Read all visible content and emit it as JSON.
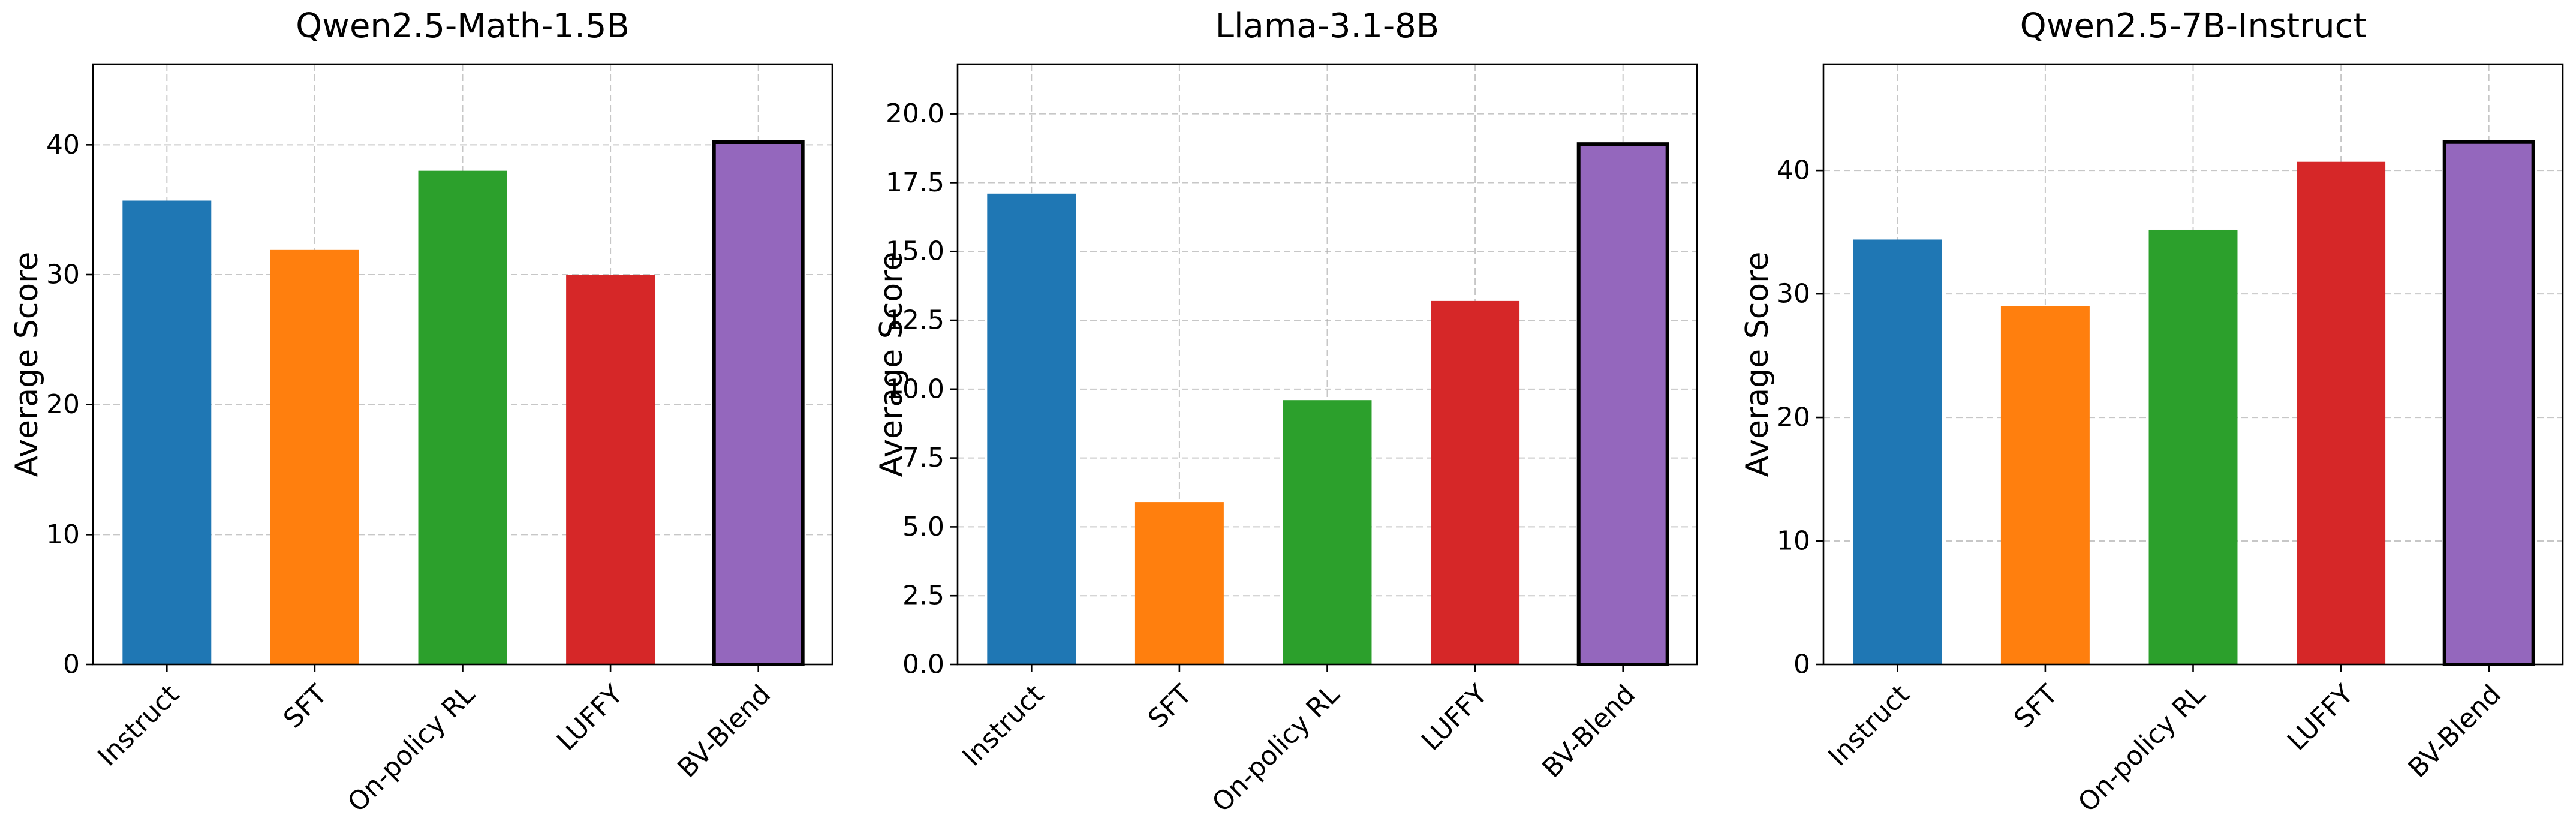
{
  "chart_data": [
    {
      "type": "bar",
      "title": "Qwen2.5-Math-1.5B",
      "xlabel": "",
      "ylabel": "Average Score",
      "categories": [
        "Instruct",
        "SFT",
        "On-policy RL",
        "LUFFY",
        "BV-Blend"
      ],
      "values": [
        35.7,
        31.9,
        38.0,
        30.0,
        40.2
      ],
      "colors": [
        "#1f77b4",
        "#ff7f0e",
        "#2ca02c",
        "#d62728",
        "#9467bd"
      ],
      "highlighted_category": "BV-Blend",
      "ylim": [
        0,
        46.2
      ],
      "yticks": [
        0,
        10,
        20,
        30,
        40
      ],
      "ytick_labels": [
        "0",
        "10",
        "20",
        "30",
        "40"
      ],
      "grid": true
    },
    {
      "type": "bar",
      "title": "Llama-3.1-8B",
      "xlabel": "",
      "ylabel": "Average Score",
      "categories": [
        "Instruct",
        "SFT",
        "On-policy RL",
        "LUFFY",
        "BV-Blend"
      ],
      "values": [
        17.1,
        5.9,
        9.6,
        13.2,
        18.9
      ],
      "colors": [
        "#1f77b4",
        "#ff7f0e",
        "#2ca02c",
        "#d62728",
        "#9467bd"
      ],
      "highlighted_category": "BV-Blend",
      "ylim": [
        0,
        21.8
      ],
      "yticks": [
        0,
        2.5,
        5,
        7.5,
        10,
        12.5,
        15,
        17.5,
        20
      ],
      "ytick_labels": [
        "0.0",
        "2.5",
        "5.0",
        "7.5",
        "10.0",
        "12.5",
        "15.0",
        "17.5",
        "20.0"
      ],
      "grid": true
    },
    {
      "type": "bar",
      "title": "Qwen2.5-7B-Instruct",
      "xlabel": "",
      "ylabel": "Average Score",
      "categories": [
        "Instruct",
        "SFT",
        "On-policy RL",
        "LUFFY",
        "BV-Blend"
      ],
      "values": [
        34.4,
        29.0,
        35.2,
        40.7,
        42.3
      ],
      "colors": [
        "#1f77b4",
        "#ff7f0e",
        "#2ca02c",
        "#d62728",
        "#9467bd"
      ],
      "highlighted_category": "BV-Blend",
      "ylim": [
        0,
        48.6
      ],
      "yticks": [
        0,
        10,
        20,
        30,
        40
      ],
      "ytick_labels": [
        "0",
        "10",
        "20",
        "30",
        "40"
      ],
      "grid": true
    }
  ]
}
